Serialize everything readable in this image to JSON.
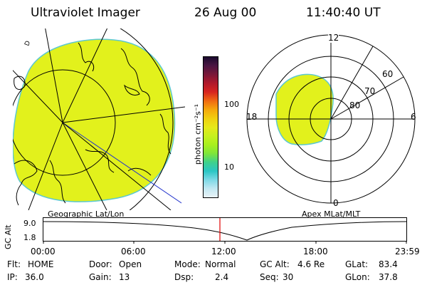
{
  "header": {
    "title": "Ultraviolet Imager",
    "date": "26 Aug 00",
    "time": "11:40:40 UT"
  },
  "geo_panel": {
    "caption": "Geographic Lat/Lon"
  },
  "colorbar": {
    "unit": "photon cm⁻²s⁻¹",
    "ticks": [
      "100",
      "10"
    ],
    "colors": [
      "#1a0b2e",
      "#4b1642",
      "#7a1738",
      "#b0182b",
      "#d8251f",
      "#f06a12",
      "#f5a80c",
      "#f0cf10",
      "#e6e81a",
      "#c7f01e",
      "#a8ef1e",
      "#7fe63a",
      "#3fd18c",
      "#2bc6c4",
      "#7dd9e6",
      "#c2e8f2",
      "#eaf2f7"
    ]
  },
  "polar_panel": {
    "caption": "Apex MLat/MLT",
    "mlt_labels": [
      "12",
      "18",
      "6",
      "0"
    ],
    "mlat_labels": [
      "60",
      "70",
      "80"
    ]
  },
  "alt_plot": {
    "ylabel": "GC Alt",
    "ymax": "9.0",
    "ymin": "1.8",
    "x_ticks": [
      "00:00",
      "06:00",
      "12:00",
      "18:00",
      "23:59"
    ]
  },
  "info": {
    "flt_label": "Flt:",
    "flt_value": "HOME",
    "ip_label": "IP:",
    "ip_value": "36.0",
    "door_label": "Door:",
    "door_value": "Open",
    "gain_label": "Gain:",
    "gain_value": "13",
    "mode_label": "Mode:",
    "mode_value": "Normal",
    "dsp_label": "Dsp:",
    "dsp_value": "2.4",
    "gcalt_label": "GC Alt:",
    "gcalt_value": "4.6 Re",
    "seq_label": "Seq:",
    "seq_value": "30",
    "glat_label": "GLat:",
    "glat_value": "83.4",
    "glon_label": "GLon:",
    "glon_value": "37.8"
  }
}
